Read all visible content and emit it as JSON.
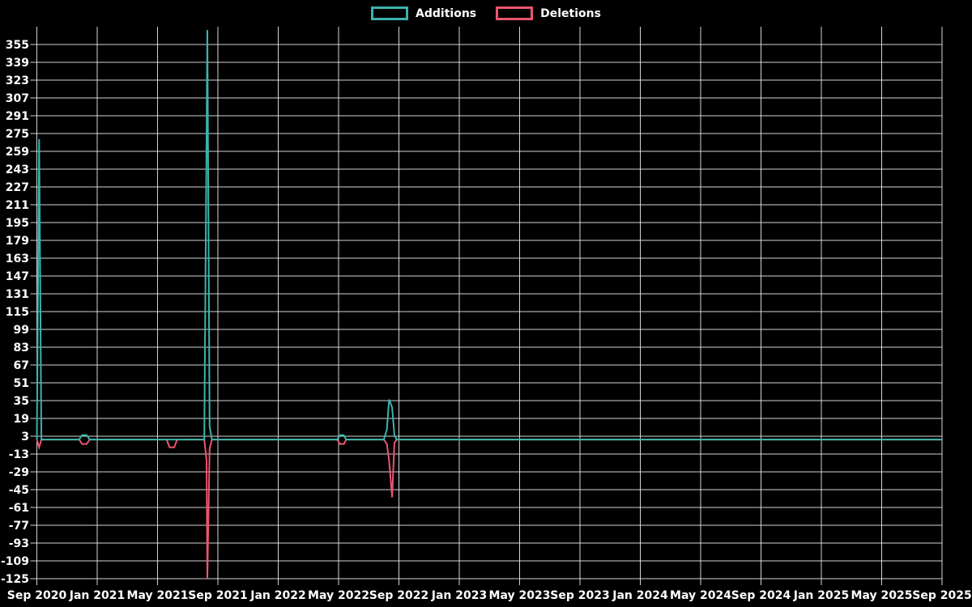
{
  "chart_data": {
    "type": "line",
    "title": "",
    "legend_position": "top",
    "grid": true,
    "background_color": "#000000",
    "grid_color": "#e6e6e6",
    "text_color": "#ffffff",
    "x_axis": {
      "labels": [
        "Sep 2020",
        "Jan 2021",
        "May 2021",
        "Sep 2021",
        "Jan 2022",
        "May 2022",
        "Sep 2022",
        "Jan 2023",
        "May 2023",
        "Sep 2023",
        "Jan 2024",
        "May 2024",
        "Sep 2024",
        "Jan 2025",
        "May 2025",
        "Sep 2025"
      ],
      "unit": "months since Sep 2020",
      "range_months": [
        0,
        60
      ],
      "label_step_months": 4
    },
    "y_axis": {
      "ticks": [
        355,
        339,
        323,
        307,
        291,
        275,
        259,
        243,
        227,
        211,
        195,
        179,
        163,
        147,
        131,
        115,
        99,
        83,
        67,
        51,
        35,
        19,
        3,
        -13,
        -29,
        -45,
        -61,
        -77,
        -93,
        -109,
        -125
      ],
      "lim": [
        -125,
        371
      ]
    },
    "series": [
      {
        "name": "Additions",
        "color": "#3ab4ac",
        "points": [
          [
            0,
            0
          ],
          [
            0.15,
            270
          ],
          [
            0.3,
            0
          ],
          [
            2.8,
            0
          ],
          [
            3.0,
            4
          ],
          [
            3.3,
            4
          ],
          [
            3.5,
            0
          ],
          [
            11.1,
            0
          ],
          [
            11.3,
            368
          ],
          [
            11.45,
            12
          ],
          [
            11.6,
            0
          ],
          [
            19.9,
            0
          ],
          [
            20.1,
            4
          ],
          [
            20.35,
            4
          ],
          [
            20.5,
            0
          ],
          [
            23.0,
            0
          ],
          [
            23.2,
            9
          ],
          [
            23.35,
            36
          ],
          [
            23.55,
            29
          ],
          [
            23.7,
            4
          ],
          [
            23.85,
            0
          ],
          [
            60,
            0
          ]
        ]
      },
      {
        "name": "Deletions",
        "color": "#ec5570",
        "points": [
          [
            0,
            0
          ],
          [
            0.15,
            -7
          ],
          [
            0.3,
            0
          ],
          [
            2.8,
            0
          ],
          [
            3.0,
            -4
          ],
          [
            3.3,
            -4
          ],
          [
            3.5,
            0
          ],
          [
            8.6,
            0
          ],
          [
            8.8,
            -7
          ],
          [
            9.1,
            -7
          ],
          [
            9.3,
            0
          ],
          [
            11.1,
            0
          ],
          [
            11.25,
            -19
          ],
          [
            11.3,
            -125
          ],
          [
            11.45,
            -8
          ],
          [
            11.6,
            0
          ],
          [
            19.9,
            0
          ],
          [
            20.1,
            -4
          ],
          [
            20.35,
            -4
          ],
          [
            20.5,
            0
          ],
          [
            23.0,
            0
          ],
          [
            23.2,
            -4
          ],
          [
            23.35,
            -19
          ],
          [
            23.55,
            -52
          ],
          [
            23.7,
            -3
          ],
          [
            23.85,
            0
          ],
          [
            60,
            0
          ]
        ]
      }
    ]
  }
}
